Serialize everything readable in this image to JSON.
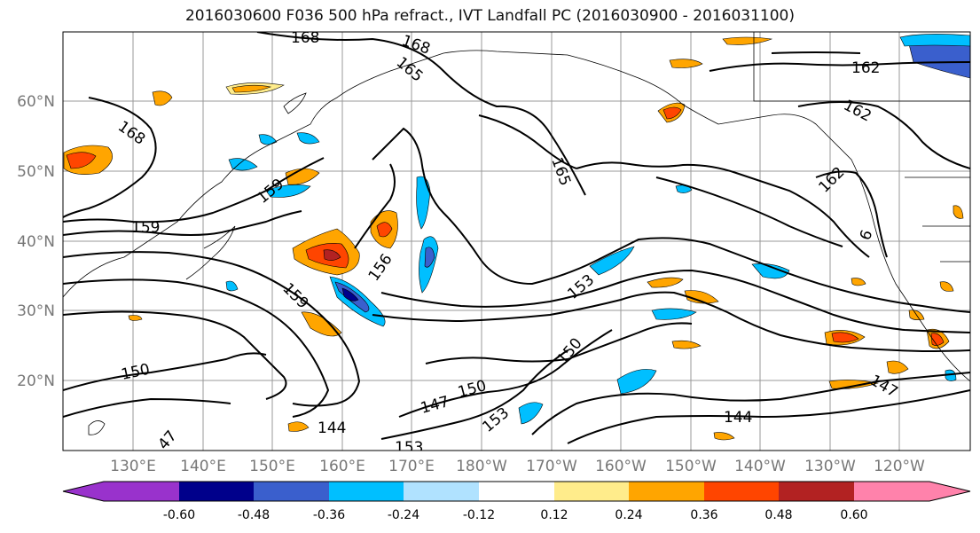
{
  "title": "2016030600 F036 500 hPa refract., IVT Landfall PC (2016030900 - 2016031100)",
  "map": {
    "lat_ticks": [
      "60°N",
      "50°N",
      "40°N",
      "30°N",
      "20°N"
    ],
    "lon_ticks": [
      "130°E",
      "140°E",
      "150°E",
      "160°E",
      "170°E",
      "180°W",
      "170°W",
      "160°W",
      "150°W",
      "140°W",
      "130°W",
      "120°W"
    ],
    "contour_labels": [
      "168",
      "168",
      "165",
      "162",
      "162",
      "168",
      "165",
      "162",
      "159",
      "159",
      "156",
      "159",
      "153",
      "6",
      "150",
      "150",
      "150",
      "147",
      "147",
      "153",
      "144",
      "144",
      "153",
      "47"
    ]
  },
  "colorbar": {
    "colors": [
      "#9932CC",
      "#00008B",
      "#3A5FCD",
      "#00BFFF",
      "#B0E2FF",
      "#FFFFFF",
      "#FFEC8B",
      "#FFA500",
      "#FF4500",
      "#B22222",
      "#FF82AB"
    ],
    "tick_labels": [
      "-0.60",
      "-0.48",
      "-0.36",
      "-0.24",
      "-0.12",
      "0.12",
      "0.24",
      "0.36",
      "0.48",
      "0.60"
    ]
  }
}
